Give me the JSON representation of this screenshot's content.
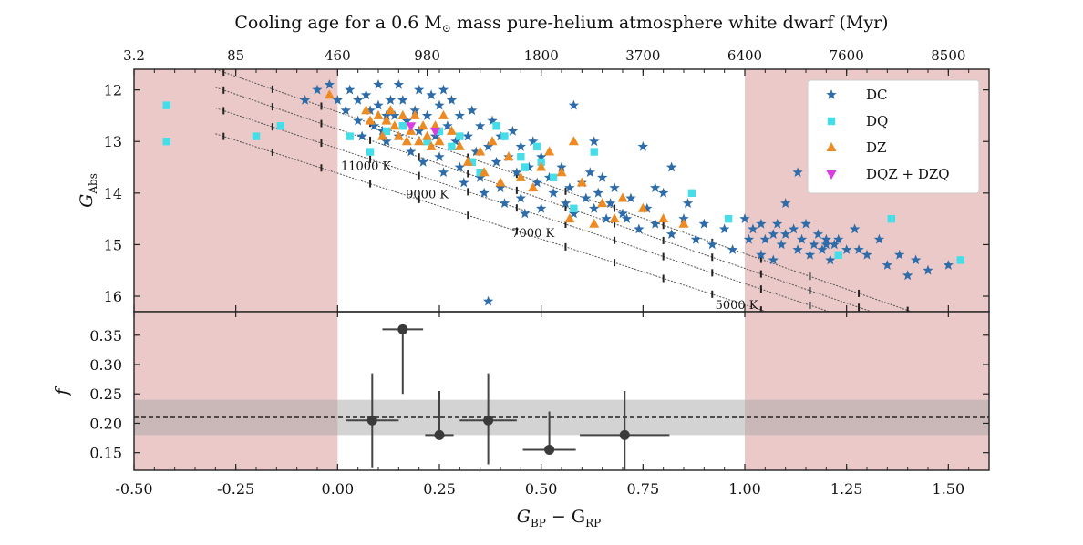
{
  "chart_data": [
    {
      "type": "scatter",
      "top_axis": {
        "label_prefix": "Cooling age for a 0.6 M",
        "label_suffix": " mass pure-helium atmosphere white dwarf (Myr)",
        "ticks": [
          {
            "x": -0.5,
            "label": "3.2"
          },
          {
            "x": -0.25,
            "label": "85"
          },
          {
            "x": 0.0,
            "label": "460"
          },
          {
            "x": 0.22,
            "label": "980"
          },
          {
            "x": 0.5,
            "label": "1800"
          },
          {
            "x": 0.75,
            "label": "3700"
          },
          {
            "x": 1.0,
            "label": "6400"
          },
          {
            "x": 1.25,
            "label": "7600"
          },
          {
            "x": 1.5,
            "label": "8500"
          }
        ]
      },
      "xlim": [
        -0.5,
        1.6
      ],
      "ylim": [
        16.3,
        11.6
      ],
      "yticks": [
        12,
        13,
        14,
        15,
        16
      ],
      "ylabel_main": "G",
      "ylabel_sub": "Abs",
      "shaded_x": [
        [
          -0.5,
          0.0
        ],
        [
          1.0,
          1.6
        ]
      ],
      "shade_color": "#ecc9c9",
      "isochrones": [
        {
          "label": "11000 K",
          "x0": -0.3,
          "y0": 11.6,
          "slope": 2.75
        },
        {
          "label": "9000 K",
          "x0": -0.3,
          "y0": 11.95,
          "slope": 2.7
        },
        {
          "label": "7000 K",
          "x0": -0.3,
          "y0": 12.35,
          "slope": 2.62
        },
        {
          "label": "5000 K",
          "x0": -0.3,
          "y0": 12.85,
          "slope": 2.55
        }
      ],
      "isochrone_labels": [
        {
          "text": "11000 K",
          "x": 0.07,
          "y": 13.55
        },
        {
          "text": "9000 K",
          "x": 0.22,
          "y": 14.1
        },
        {
          "text": "7000 K",
          "x": 0.48,
          "y": 14.85
        },
        {
          "text": "5000 K",
          "x": 0.98,
          "y": 16.25
        }
      ],
      "legend_position": "top-right",
      "series": [
        {
          "name": "DC",
          "marker": "star",
          "color": "#2d6ca8",
          "points": [
            [
              -0.08,
              12.2
            ],
            [
              -0.05,
              12.0
            ],
            [
              -0.02,
              11.9
            ],
            [
              0.0,
              12.2
            ],
            [
              0.02,
              12.4
            ],
            [
              0.03,
              12.0
            ],
            [
              0.05,
              12.2
            ],
            [
              0.05,
              12.6
            ],
            [
              0.06,
              12.9
            ],
            [
              0.07,
              12.1
            ],
            [
              0.08,
              12.4
            ],
            [
              0.09,
              12.7
            ],
            [
              0.1,
              11.9
            ],
            [
              0.1,
              12.3
            ],
            [
              0.11,
              12.8
            ],
            [
              0.12,
              13.0
            ],
            [
              0.13,
              12.2
            ],
            [
              0.14,
              12.5
            ],
            [
              0.15,
              11.9
            ],
            [
              0.15,
              12.9
            ],
            [
              0.16,
              12.2
            ],
            [
              0.17,
              12.6
            ],
            [
              0.18,
              13.2
            ],
            [
              0.19,
              12.4
            ],
            [
              0.2,
              12.0
            ],
            [
              0.2,
              12.8
            ],
            [
              0.21,
              13.4
            ],
            [
              0.22,
              12.5
            ],
            [
              0.23,
              12.1
            ],
            [
              0.24,
              12.9
            ],
            [
              0.25,
              13.3
            ],
            [
              0.25,
              12.3
            ],
            [
              0.26,
              13.6
            ],
            [
              0.27,
              12.7
            ],
            [
              0.28,
              12.2
            ],
            [
              0.29,
              13.0
            ],
            [
              0.3,
              13.5
            ],
            [
              0.3,
              12.5
            ],
            [
              0.31,
              13.8
            ],
            [
              0.32,
              12.9
            ],
            [
              0.33,
              12.4
            ],
            [
              0.34,
              13.2
            ],
            [
              0.35,
              13.7
            ],
            [
              0.35,
              12.7
            ],
            [
              0.36,
              14.0
            ],
            [
              0.37,
              13.1
            ],
            [
              0.38,
              12.6
            ],
            [
              0.39,
              13.4
            ],
            [
              0.4,
              13.9
            ],
            [
              0.4,
              12.9
            ],
            [
              0.41,
              14.2
            ],
            [
              0.42,
              13.3
            ],
            [
              0.43,
              12.8
            ],
            [
              0.44,
              13.6
            ],
            [
              0.45,
              14.1
            ],
            [
              0.45,
              13.1
            ],
            [
              0.46,
              14.4
            ],
            [
              0.47,
              13.5
            ],
            [
              0.48,
              13.0
            ],
            [
              0.49,
              13.8
            ],
            [
              0.5,
              14.3
            ],
            [
              0.5,
              13.3
            ],
            [
              0.52,
              13.7
            ],
            [
              0.53,
              14.0
            ],
            [
              0.55,
              13.5
            ],
            [
              0.56,
              14.2
            ],
            [
              0.57,
              13.9
            ],
            [
              0.58,
              14.4
            ],
            [
              0.6,
              13.8
            ],
            [
              0.61,
              14.1
            ],
            [
              0.62,
              13.6
            ],
            [
              0.63,
              14.3
            ],
            [
              0.64,
              14.0
            ],
            [
              0.65,
              13.7
            ],
            [
              0.66,
              14.5
            ],
            [
              0.67,
              14.2
            ],
            [
              0.68,
              13.9
            ],
            [
              0.7,
              14.4
            ],
            [
              0.72,
              14.1
            ],
            [
              0.74,
              14.7
            ],
            [
              0.76,
              14.3
            ],
            [
              0.78,
              14.6
            ],
            [
              0.8,
              14.0
            ],
            [
              0.82,
              14.8
            ],
            [
              0.85,
              14.5
            ],
            [
              0.88,
              14.9
            ],
            [
              0.9,
              14.6
            ],
            [
              0.92,
              15.0
            ],
            [
              0.95,
              14.7
            ],
            [
              0.97,
              15.1
            ],
            [
              0.58,
              12.3
            ],
            [
              0.63,
              13.0
            ],
            [
              0.75,
              13.1
            ],
            [
              0.82,
              13.5
            ],
            [
              0.78,
              13.9
            ],
            [
              0.71,
              14.5
            ],
            [
              0.86,
              14.2
            ],
            [
              0.37,
              16.1
            ],
            [
              0.12,
              12.5
            ],
            [
              0.26,
              12.0
            ],
            [
              1.0,
              14.5
            ],
            [
              1.02,
              14.7
            ],
            [
              1.04,
              14.6
            ],
            [
              1.05,
              14.9
            ],
            [
              1.07,
              14.8
            ],
            [
              1.08,
              14.6
            ],
            [
              1.09,
              15.0
            ],
            [
              1.1,
              14.8
            ],
            [
              1.12,
              14.7
            ],
            [
              1.13,
              15.1
            ],
            [
              1.14,
              14.9
            ],
            [
              1.15,
              14.6
            ],
            [
              1.16,
              15.2
            ],
            [
              1.17,
              15.0
            ],
            [
              1.18,
              14.8
            ],
            [
              1.19,
              15.1
            ],
            [
              1.2,
              14.9
            ],
            [
              1.21,
              15.3
            ],
            [
              1.22,
              15.0
            ],
            [
              1.23,
              14.9
            ],
            [
              1.25,
              15.1
            ],
            [
              1.27,
              14.7
            ],
            [
              1.3,
              15.2
            ],
            [
              1.33,
              14.9
            ],
            [
              1.35,
              15.4
            ],
            [
              1.38,
              15.2
            ],
            [
              1.42,
              15.3
            ],
            [
              1.45,
              15.5
            ],
            [
              1.5,
              15.4
            ],
            [
              1.13,
              13.6
            ],
            [
              1.1,
              14.2
            ],
            [
              1.07,
              15.3
            ],
            [
              1.01,
              14.9
            ],
            [
              1.04,
              15.2
            ],
            [
              1.2,
              15.0
            ],
            [
              1.28,
              15.1
            ],
            [
              1.4,
              15.6
            ]
          ]
        },
        {
          "name": "DQ",
          "marker": "square",
          "color": "#45dde8",
          "points": [
            [
              -0.42,
              12.3
            ],
            [
              -0.42,
              13.0
            ],
            [
              -0.2,
              12.9
            ],
            [
              -0.14,
              12.7
            ],
            [
              0.03,
              12.9
            ],
            [
              0.08,
              13.2
            ],
            [
              0.12,
              12.8
            ],
            [
              0.16,
              12.7
            ],
            [
              0.22,
              13.0
            ],
            [
              0.25,
              12.8
            ],
            [
              0.28,
              13.1
            ],
            [
              0.3,
              12.9
            ],
            [
              0.33,
              13.4
            ],
            [
              0.35,
              13.6
            ],
            [
              0.39,
              12.7
            ],
            [
              0.41,
              12.9
            ],
            [
              0.45,
              13.3
            ],
            [
              0.46,
              13.5
            ],
            [
              0.49,
              13.1
            ],
            [
              0.5,
              13.4
            ],
            [
              0.53,
              13.7
            ],
            [
              0.58,
              14.3
            ],
            [
              0.63,
              13.2
            ],
            [
              0.87,
              14.0
            ],
            [
              0.96,
              14.5
            ],
            [
              1.23,
              15.2
            ],
            [
              1.36,
              14.5
            ],
            [
              1.53,
              15.3
            ]
          ]
        },
        {
          "name": "DZ",
          "marker": "triangle-up",
          "color": "#ee8a22",
          "points": [
            [
              -0.02,
              12.1
            ],
            [
              0.07,
              12.4
            ],
            [
              0.08,
              12.6
            ],
            [
              0.1,
              12.5
            ],
            [
              0.11,
              12.9
            ],
            [
              0.12,
              12.6
            ],
            [
              0.13,
              12.4
            ],
            [
              0.14,
              12.7
            ],
            [
              0.15,
              12.9
            ],
            [
              0.16,
              12.5
            ],
            [
              0.17,
              13.0
            ],
            [
              0.18,
              12.8
            ],
            [
              0.19,
              12.5
            ],
            [
              0.2,
              13.0
            ],
            [
              0.21,
              12.7
            ],
            [
              0.22,
              12.9
            ],
            [
              0.23,
              13.1
            ],
            [
              0.24,
              12.7
            ],
            [
              0.25,
              13.0
            ],
            [
              0.26,
              12.5
            ],
            [
              0.28,
              12.8
            ],
            [
              0.3,
              13.1
            ],
            [
              0.32,
              13.4
            ],
            [
              0.35,
              13.2
            ],
            [
              0.36,
              13.6
            ],
            [
              0.38,
              13.0
            ],
            [
              0.4,
              13.8
            ],
            [
              0.42,
              13.3
            ],
            [
              0.45,
              13.7
            ],
            [
              0.5,
              13.5
            ],
            [
              0.52,
              13.2
            ],
            [
              0.55,
              13.6
            ],
            [
              0.58,
              13.0
            ],
            [
              0.6,
              13.8
            ],
            [
              0.65,
              14.2
            ],
            [
              0.68,
              14.5
            ],
            [
              0.7,
              14.1
            ],
            [
              0.75,
              14.3
            ],
            [
              0.8,
              14.5
            ],
            [
              0.85,
              14.6
            ],
            [
              0.57,
              14.5
            ],
            [
              0.63,
              14.6
            ],
            [
              0.48,
              13.9
            ]
          ]
        },
        {
          "name": "DQZ + DZQ",
          "marker": "triangle-down",
          "color": "#d93ee0",
          "points": [
            [
              0.18,
              12.7
            ],
            [
              0.24,
              12.8
            ]
          ]
        }
      ]
    },
    {
      "type": "scatter",
      "xlim": [
        -0.5,
        1.6
      ],
      "ylim": [
        0.12,
        0.39
      ],
      "yticks": [
        0.15,
        0.2,
        0.25,
        0.3,
        0.35
      ],
      "xticks": [
        -0.5,
        -0.25,
        0.0,
        0.25,
        0.5,
        0.75,
        1.0,
        1.25,
        1.5
      ],
      "xtick_labels": [
        "-0.50",
        "-0.25",
        "0.00",
        "0.25",
        "0.50",
        "0.75",
        "1.00",
        "1.25",
        "1.50"
      ],
      "ylabel": "f",
      "xlabel_main": "G",
      "xlabel_sub1": "BP",
      "xlabel_mid": " − G",
      "xlabel_sub2": "RP",
      "mean": 0.21,
      "mean_band": [
        0.18,
        0.24
      ],
      "points": [
        {
          "x": 0.085,
          "y": 0.205,
          "xerr": 0.065,
          "yerr_lo": 0.08,
          "yerr_hi": 0.08
        },
        {
          "x": 0.16,
          "y": 0.36,
          "xerr": 0.05,
          "yerr_lo": 0.11,
          "yerr_hi": 0.0
        },
        {
          "x": 0.25,
          "y": 0.18,
          "xerr": 0.035,
          "yerr_lo": 0.0,
          "yerr_hi": 0.075
        },
        {
          "x": 0.37,
          "y": 0.205,
          "xerr": 0.07,
          "yerr_lo": 0.075,
          "yerr_hi": 0.08
        },
        {
          "x": 0.52,
          "y": 0.155,
          "xerr": 0.065,
          "yerr_lo": 0.0,
          "yerr_hi": 0.065
        },
        {
          "x": 0.705,
          "y": 0.18,
          "xerr": 0.11,
          "yerr_lo": 0.065,
          "yerr_hi": 0.075
        }
      ]
    }
  ]
}
